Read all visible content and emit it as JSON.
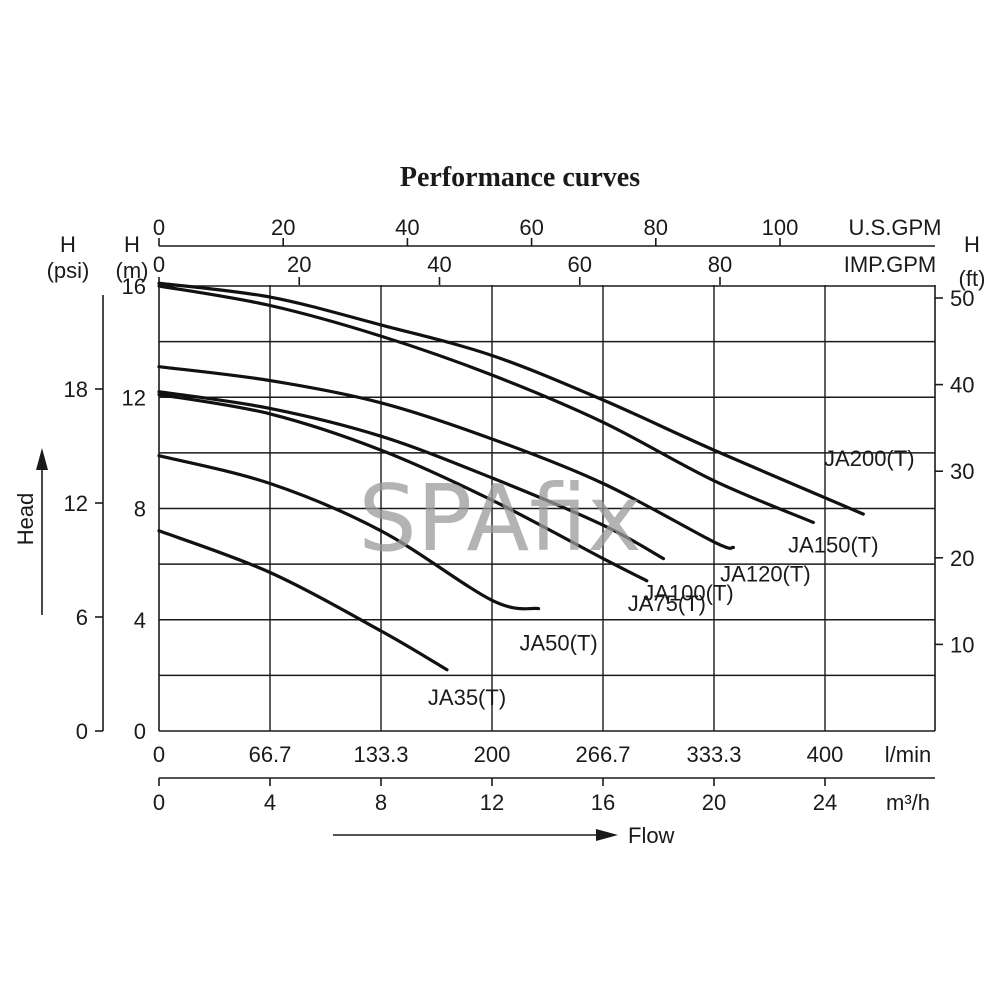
{
  "chart_data": {
    "type": "line",
    "title": "Performance curves",
    "watermark": "SPAfix",
    "x_axes": {
      "primary": {
        "unit": "l/min",
        "ticks": [
          "0",
          "66.7",
          "133.3",
          "200",
          "266.7",
          "333.3",
          "400"
        ],
        "range": [
          0,
          470
        ]
      },
      "m3h": {
        "unit": "m³/h",
        "ticks": [
          "0",
          "4",
          "8",
          "12",
          "16",
          "20",
          "24"
        ]
      },
      "usgpm": {
        "unit": "U.S.GPM",
        "ticks": [
          "0",
          "20",
          "40",
          "60",
          "80",
          "100"
        ]
      },
      "impgpm": {
        "unit": "IMP.GPM",
        "ticks": [
          "0",
          "20",
          "40",
          "60",
          "80"
        ]
      },
      "flow_label": "Flow"
    },
    "y_axes": {
      "primary": {
        "header": [
          "H",
          "(m)"
        ],
        "ticks": [
          "0",
          "4",
          "8",
          "12",
          "16"
        ],
        "range": [
          0,
          16
        ]
      },
      "psi": {
        "header": [
          "H",
          "(psi)"
        ],
        "ticks": [
          "0",
          "6",
          "12",
          "18"
        ]
      },
      "ft": {
        "header": [
          "H",
          "(ft)"
        ],
        "ticks": [
          "10",
          "20",
          "30",
          "40",
          "50"
        ]
      },
      "head_label": "Head"
    },
    "grid": true,
    "series": [
      {
        "name": "JA35(T)",
        "x": [
          0,
          66.7,
          133.3,
          173
        ],
        "y": [
          7.2,
          5.7,
          3.6,
          2.2
        ]
      },
      {
        "name": "JA50(T)",
        "x": [
          0,
          66.7,
          133.3,
          200,
          228
        ],
        "y": [
          9.9,
          8.9,
          7.2,
          4.7,
          4.4
        ]
      },
      {
        "name": "JA75(T)",
        "x": [
          0,
          66.7,
          133.3,
          200,
          266.7,
          293
        ],
        "y": [
          12.1,
          11.4,
          10.1,
          8.3,
          6.2,
          5.4
        ]
      },
      {
        "name": "JA100(T)",
        "x": [
          0,
          66.7,
          133.3,
          200,
          266.7,
          303
        ],
        "y": [
          12.2,
          11.6,
          10.6,
          9.1,
          7.4,
          6.2
        ]
      },
      {
        "name": "JA120(T)",
        "x": [
          0,
          66.7,
          133.3,
          200,
          266.7,
          333.3,
          345
        ],
        "y": [
          13.1,
          12.6,
          11.8,
          10.5,
          8.9,
          6.8,
          6.6
        ]
      },
      {
        "name": "JA150(T)",
        "x": [
          0,
          66.7,
          133.3,
          200,
          266.7,
          333.3,
          393
        ],
        "y": [
          16.0,
          15.3,
          14.2,
          12.8,
          11.1,
          9.0,
          7.5
        ]
      },
      {
        "name": "JA200(T)",
        "x": [
          0,
          66.7,
          133.3,
          200,
          266.7,
          333.3,
          423
        ],
        "y": [
          16.1,
          15.6,
          14.6,
          13.5,
          11.9,
          10.1,
          7.8
        ]
      }
    ]
  }
}
